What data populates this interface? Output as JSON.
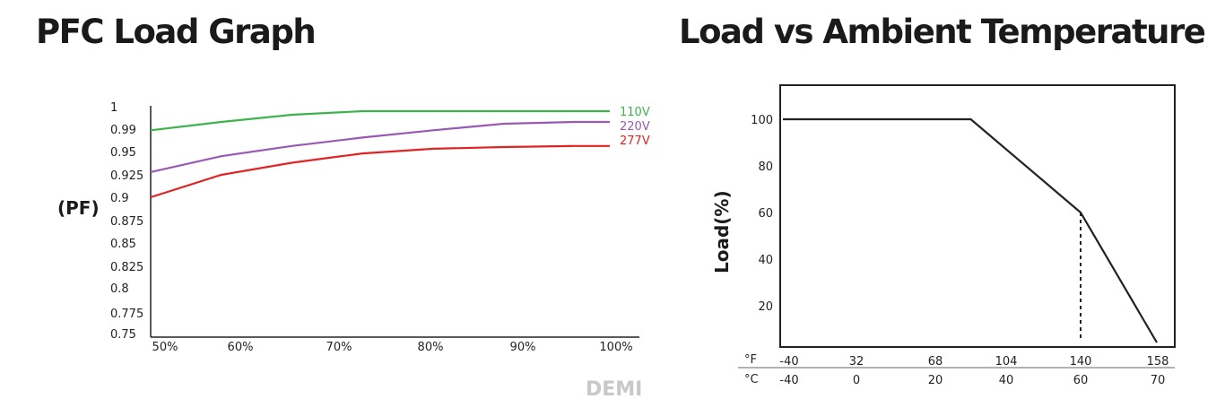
{
  "titles": {
    "left": "PFC Load Graph",
    "right": "Load vs Ambient Temperature"
  },
  "watermark": "DEMI",
  "chart_data": [
    {
      "type": "line",
      "title": "PFC Load Graph",
      "ylabel": "(PF)",
      "xlabel": "",
      "x_tick_labels": [
        "50%",
        "60%",
        "70%",
        "80%",
        "90%",
        "100%"
      ],
      "y_tick_labels": [
        "1",
        "0.99",
        "0.95",
        "0.925",
        "0.9",
        "0.875",
        "0.85",
        "0.825",
        "0.8",
        "0.775",
        "0.75"
      ],
      "x": [
        48,
        56,
        64,
        72,
        80,
        88,
        96,
        100
      ],
      "series": [
        {
          "name": "110V",
          "color": "#3cb44b",
          "values": [
            0.988,
            0.994,
            0.998,
            1.0,
            1.0,
            1.0,
            1.0,
            1.0
          ]
        },
        {
          "name": "220V",
          "color": "#9b59b6",
          "values": [
            0.928,
            0.945,
            0.96,
            0.975,
            0.988,
            0.993,
            0.994,
            0.994
          ]
        },
        {
          "name": "277V",
          "color": "#e02424",
          "values": [
            0.9,
            0.925,
            0.938,
            0.948,
            0.955,
            0.958,
            0.96,
            0.96
          ]
        }
      ],
      "legend": "right-end labels"
    },
    {
      "type": "line",
      "title": "Load vs Ambient Temperature",
      "ylabel": "Load(%)",
      "xlabel": "",
      "x_unit_f": "°F",
      "x_unit_c": "°C",
      "x_ticks_f": [
        "-40",
        "32",
        "68",
        "104",
        "140",
        "158"
      ],
      "x_ticks_c": [
        "-40",
        "0",
        "20",
        "40",
        "60",
        "70"
      ],
      "y_ticks": [
        "100",
        "80",
        "60",
        "40",
        "20"
      ],
      "ylim": [
        0,
        110
      ],
      "xlim_c": [
        -40,
        70
      ],
      "series": [
        {
          "color": "#222222",
          "x": [
            -40,
            30,
            60,
            70
          ],
          "values": [
            100,
            100,
            60,
            0
          ]
        }
      ],
      "annotations": [
        {
          "type": "dashed-vertical",
          "x": 60,
          "y_from": 0,
          "y_to": 60
        }
      ]
    }
  ]
}
